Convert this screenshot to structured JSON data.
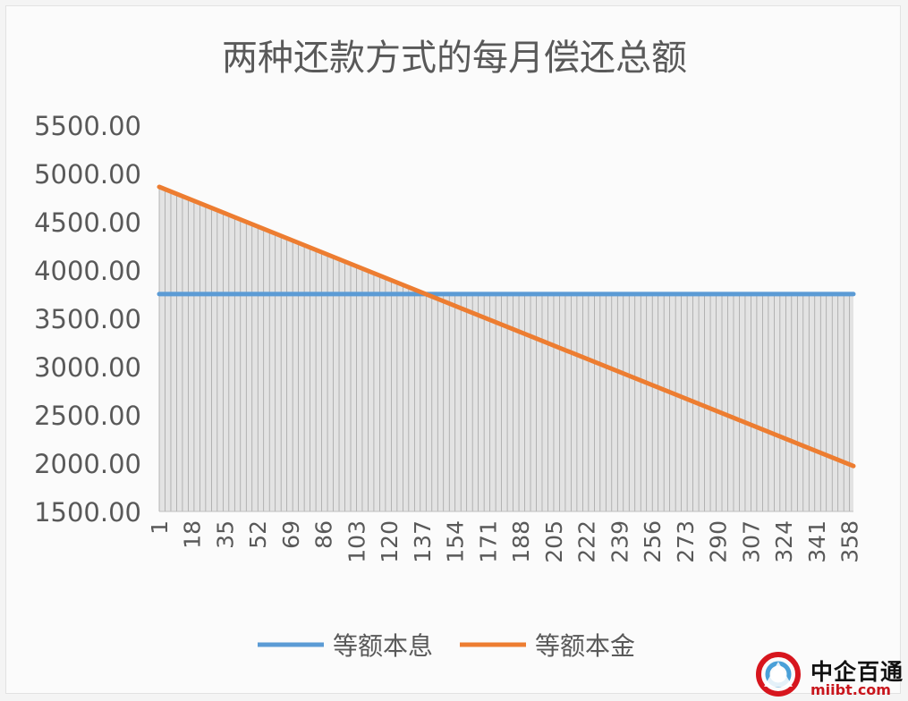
{
  "chart_data": {
    "type": "line",
    "title": "两种还款方式的每月偿还总额",
    "xlabel": "",
    "ylabel": "",
    "x_range": [
      1,
      360
    ],
    "x_tick_labels": [
      "1",
      "18",
      "35",
      "52",
      "69",
      "86",
      "103",
      "120",
      "137",
      "154",
      "171",
      "188",
      "205",
      "222",
      "239",
      "256",
      "273",
      "290",
      "307",
      "324",
      "341",
      "358"
    ],
    "ylim": [
      1500,
      5500
    ],
    "y_tick_labels": [
      "1500.00",
      "2000.00",
      "2500.00",
      "3000.00",
      "3500.00",
      "4000.00",
      "4500.00",
      "5000.00",
      "5500.00"
    ],
    "grid": "vertical drop lines to x-axis",
    "legend_position": "bottom",
    "series": [
      {
        "name": "等额本息",
        "color": "#5b9bd5",
        "x": [
          1,
          360
        ],
        "y": [
          3751,
          3751
        ]
      },
      {
        "name": "等额本金",
        "color": "#ed7d31",
        "x": [
          1,
          360
        ],
        "y": [
          4861,
          1970
        ]
      }
    ]
  },
  "watermark": {
    "name": "中企百通",
    "url": "miibt.com"
  }
}
